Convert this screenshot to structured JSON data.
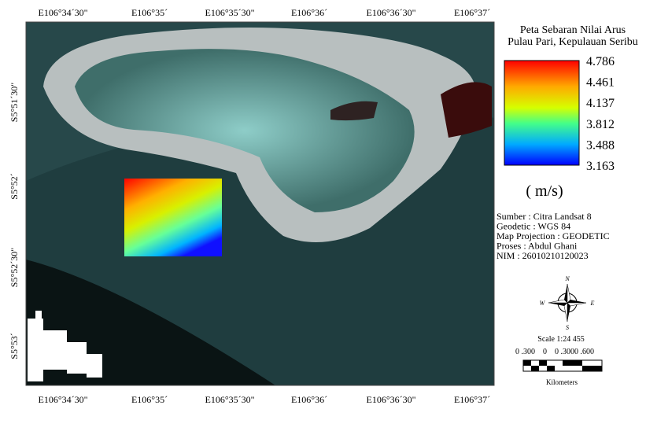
{
  "map": {
    "top_labels": [
      "E106°34´30\"",
      "E106°35´",
      "E106°35´30\"",
      "E106°36´",
      "E106°36´30\"",
      "E106°37´"
    ],
    "bottom_labels": [
      "E106°34´30\"",
      "E106°35´",
      "E106°35´30\"",
      "E106°36´",
      "E106°36´30\"",
      "E106°37´"
    ],
    "left_labels": [
      "S5°51´30\"",
      "S5°52´",
      "S5°52´30\"",
      "S5°53´"
    ]
  },
  "legend": {
    "title": [
      "Peta Sebaran Nilai Arus",
      "Pulau Pari, Kepulauan Seribu"
    ],
    "colorbar_labels": [
      "4.786",
      "4.461",
      "4.137",
      "3.812",
      "3.488",
      "3.163"
    ],
    "unit": "( m/s)",
    "info": [
      "Sumber : Citra Landsat 8",
      "Geodetic : WGS 84",
      "Map Projection : GEODETIC",
      "Proses : Abdul Ghani",
      "NIM : 26010210120023"
    ],
    "compass": {
      "n": "N",
      "e": "E",
      "s": "S",
      "w": "W"
    },
    "scale": "Scale 1:24 455",
    "scale_ticks": "0 .300    0    0 .3000 .600",
    "scale_unit": "Kilometers"
  }
}
